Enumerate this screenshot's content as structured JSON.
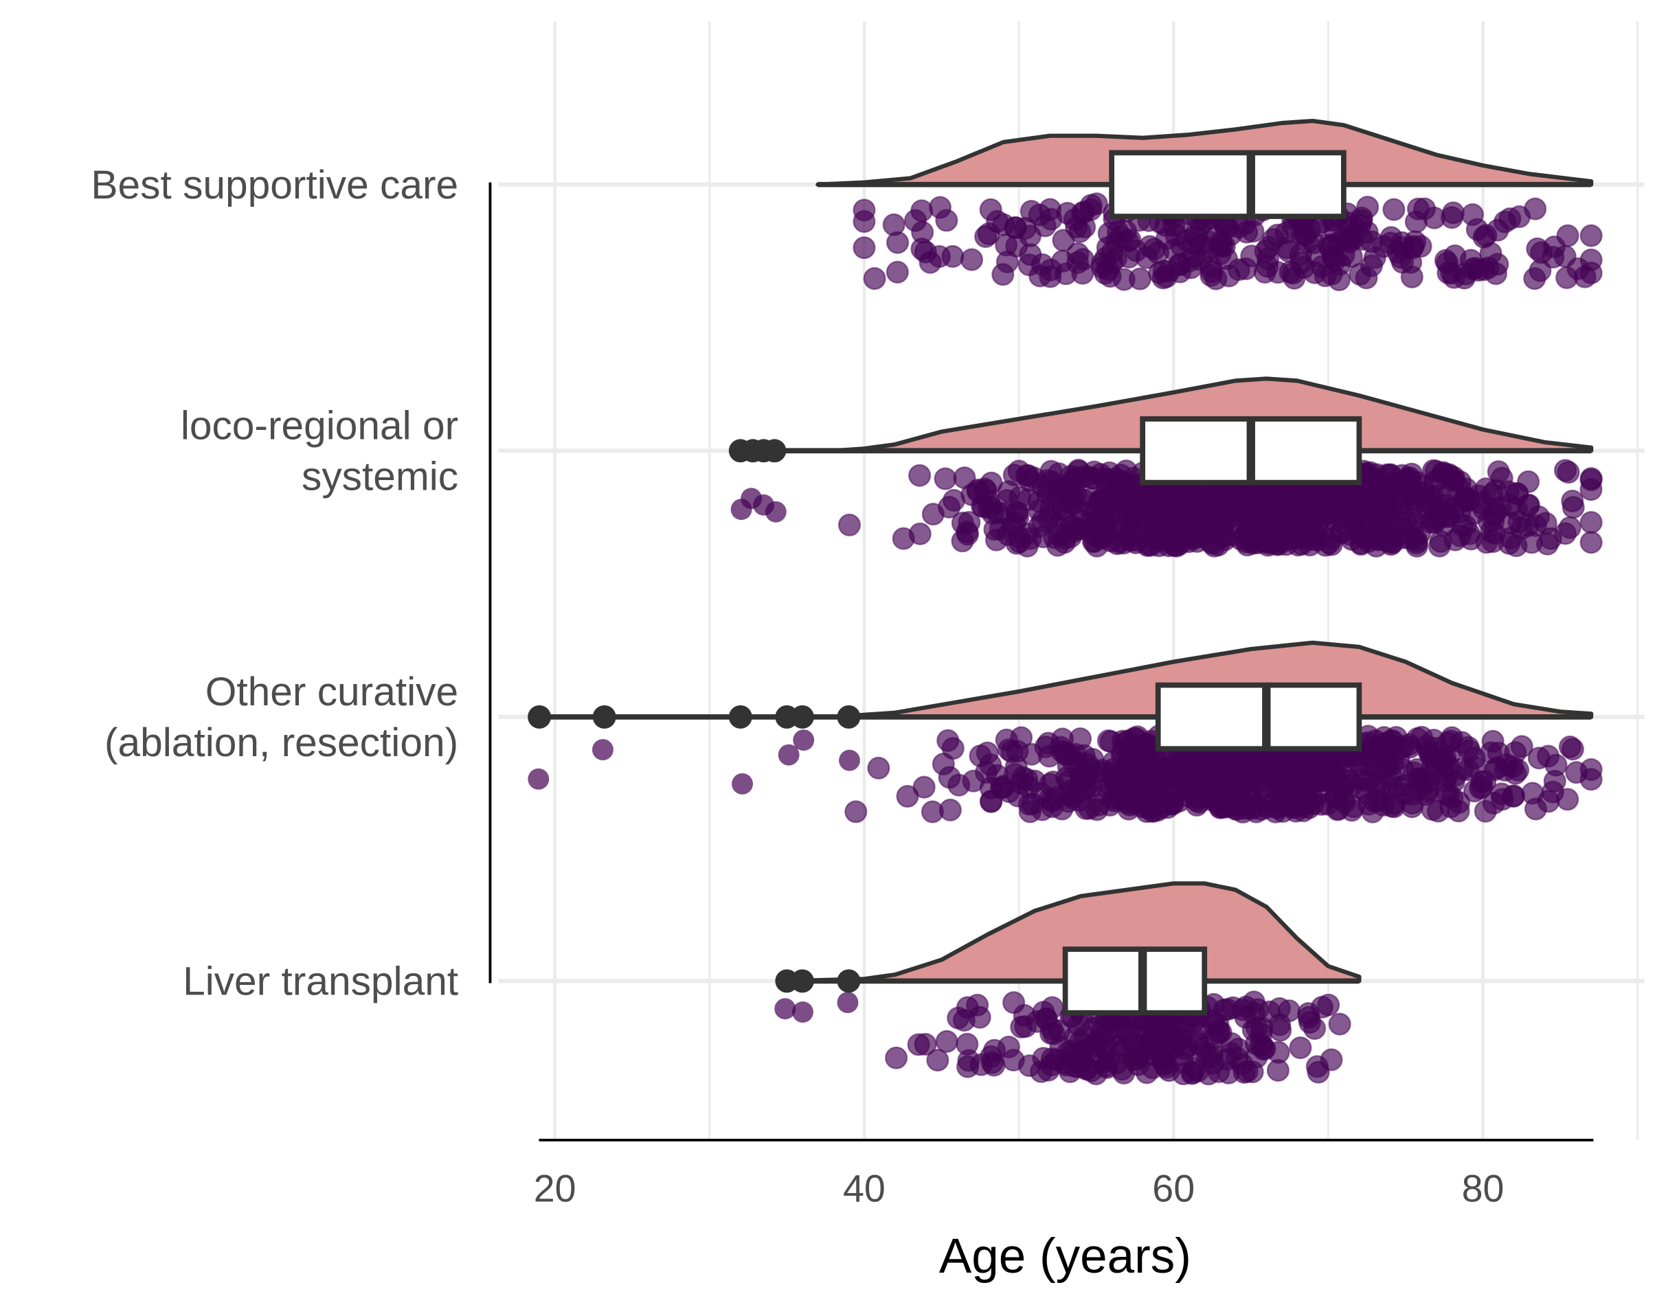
{
  "chart_data": {
    "type": "raincloud",
    "title": "",
    "xlabel": "Age (years)",
    "ylabel": "",
    "xlim": [
      18,
      92
    ],
    "xticks": [
      20,
      40,
      60,
      80
    ],
    "grid": true,
    "colors": {
      "density": "#dc9494",
      "outline": "#333333",
      "points": "#440154",
      "box": "#ffffff",
      "grid": "#ebebeb"
    },
    "groups": [
      {
        "label_lines": [
          "Best supportive care"
        ],
        "box": {
          "q1": 56,
          "median": 65,
          "q3": 71
        },
        "range": [
          37,
          87
        ],
        "outliers": [],
        "density": [
          [
            37,
            0
          ],
          [
            40,
            2
          ],
          [
            43,
            6
          ],
          [
            46,
            22
          ],
          [
            49,
            40
          ],
          [
            52,
            46
          ],
          [
            55,
            46
          ],
          [
            58,
            44
          ],
          [
            61,
            47
          ],
          [
            64,
            52
          ],
          [
            67,
            58
          ],
          [
            69,
            60
          ],
          [
            71,
            56
          ],
          [
            74,
            42
          ],
          [
            77,
            28
          ],
          [
            80,
            18
          ],
          [
            83,
            10
          ],
          [
            87,
            3
          ]
        ],
        "points": {
          "n": 300,
          "mean": 64,
          "sd": 10,
          "min": 37,
          "max": 87
        }
      },
      {
        "label_lines": [
          "loco-regional or",
          "systemic"
        ],
        "box": {
          "q1": 58,
          "median": 65,
          "q3": 72
        },
        "range": [
          32,
          87
        ],
        "outliers": [
          32,
          32.8,
          33.5,
          34.2
        ],
        "density": [
          [
            32,
            0
          ],
          [
            38,
            0
          ],
          [
            40,
            2
          ],
          [
            42,
            6
          ],
          [
            45,
            18
          ],
          [
            50,
            30
          ],
          [
            55,
            42
          ],
          [
            60,
            55
          ],
          [
            64,
            66
          ],
          [
            66,
            68
          ],
          [
            68,
            66
          ],
          [
            72,
            52
          ],
          [
            76,
            36
          ],
          [
            80,
            20
          ],
          [
            84,
            8
          ],
          [
            87,
            3
          ]
        ],
        "points": {
          "n": 900,
          "mean": 65,
          "sd": 9,
          "min": 32,
          "max": 87
        }
      },
      {
        "label_lines": [
          "Other curative",
          "(ablation, resection)"
        ],
        "box": {
          "q1": 59,
          "median": 66,
          "q3": 72
        },
        "range": [
          19,
          87
        ],
        "outliers": [
          19,
          23.2,
          32,
          35,
          36,
          39
        ],
        "density": [
          [
            19,
            0
          ],
          [
            38,
            0
          ],
          [
            42,
            4
          ],
          [
            46,
            14
          ],
          [
            50,
            24
          ],
          [
            55,
            38
          ],
          [
            60,
            52
          ],
          [
            65,
            64
          ],
          [
            69,
            70
          ],
          [
            72,
            66
          ],
          [
            75,
            52
          ],
          [
            78,
            32
          ],
          [
            82,
            12
          ],
          [
            85,
            5
          ],
          [
            87,
            3
          ]
        ],
        "points": {
          "n": 700,
          "mean": 65,
          "sd": 9,
          "min": 19,
          "max": 87
        }
      },
      {
        "label_lines": [
          "Liver transplant"
        ],
        "box": {
          "q1": 53,
          "median": 58,
          "q3": 62
        },
        "range": [
          35,
          72
        ],
        "outliers": [
          35,
          36,
          39
        ],
        "density": [
          [
            35,
            0
          ],
          [
            40,
            2
          ],
          [
            42,
            6
          ],
          [
            45,
            20
          ],
          [
            48,
            44
          ],
          [
            51,
            66
          ],
          [
            54,
            80
          ],
          [
            57,
            86
          ],
          [
            60,
            92
          ],
          [
            62,
            92
          ],
          [
            64,
            86
          ],
          [
            66,
            70
          ],
          [
            68,
            40
          ],
          [
            70,
            14
          ],
          [
            72,
            4
          ]
        ],
        "points": {
          "n": 250,
          "mean": 58,
          "sd": 6,
          "min": 35,
          "max": 72
        }
      }
    ]
  }
}
